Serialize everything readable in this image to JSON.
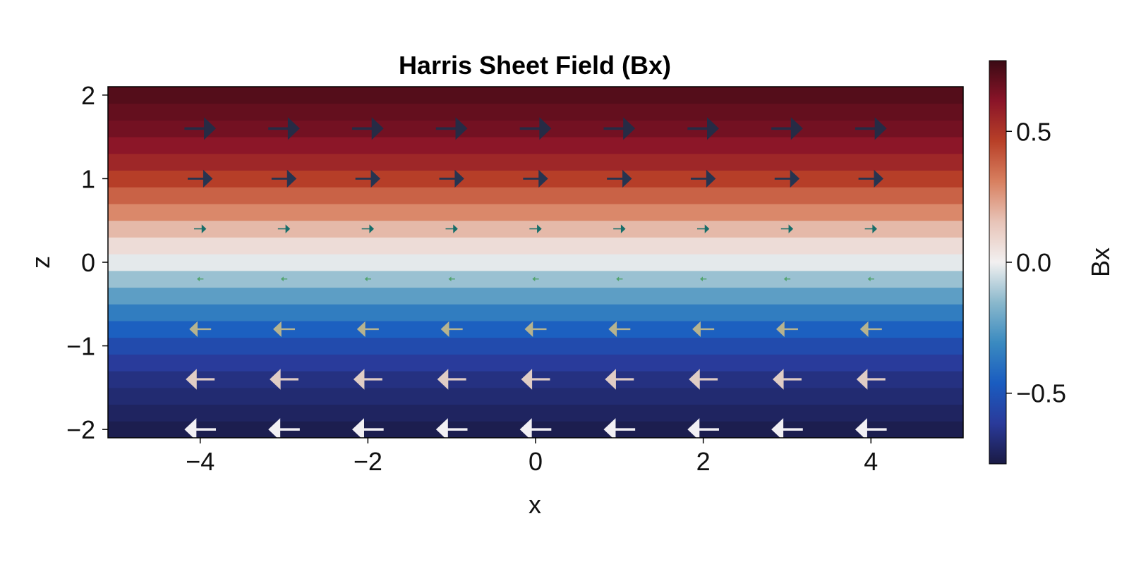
{
  "chart_data": {
    "type": "heatmap",
    "title": "Harris Sheet Field (Bx)",
    "xlabel": "x",
    "ylabel": "z",
    "xlim": [
      -5.1,
      5.1
    ],
    "ylim": [
      -2.1,
      2.1
    ],
    "xticks": [
      -4,
      -2,
      0,
      2,
      4
    ],
    "xtick_labels": [
      "−4",
      "−2",
      "0",
      "2",
      "4"
    ],
    "yticks": [
      -2,
      -1,
      0,
      1,
      2
    ],
    "ytick_labels": [
      "−2",
      "−1",
      "0",
      "1",
      "2"
    ],
    "field": {
      "z_bands": [
        -2.1,
        -1.9,
        -1.7,
        -1.5,
        -1.3,
        -1.1,
        -0.9,
        -0.7,
        -0.5,
        -0.3,
        -0.1,
        0.1,
        0.3,
        0.5,
        0.7,
        0.9,
        1.1,
        1.3,
        1.5,
        1.7,
        1.9,
        2.1
      ],
      "band_values": [
        -0.75,
        -0.72,
        -0.69,
        -0.66,
        -0.61,
        -0.54,
        -0.45,
        -0.35,
        -0.24,
        -0.13,
        -0.02,
        0.07,
        0.18,
        0.29,
        0.38,
        0.47,
        0.55,
        0.61,
        0.66,
        0.69,
        0.72,
        0.75
      ]
    },
    "arrows": {
      "x": [
        -4,
        -3,
        -2,
        -1,
        0,
        1,
        2,
        3,
        4
      ],
      "rows": [
        {
          "z": 1.6,
          "bx": 0.72,
          "color": "#262b45"
        },
        {
          "z": 1.0,
          "bx": 0.57,
          "color": "#263450"
        },
        {
          "z": 0.4,
          "bx": 0.28,
          "color": "#176e6a"
        },
        {
          "z": -0.2,
          "bx": -0.15,
          "color": "#52a36e"
        },
        {
          "z": -0.8,
          "bx": -0.5,
          "color": "#b6b38f"
        },
        {
          "z": -1.4,
          "bx": -0.66,
          "color": "#e0cdc5"
        },
        {
          "z": -2.0,
          "bx": -0.72,
          "color": "#f2f0f4"
        }
      ]
    },
    "colorbar": {
      "label": "Bx",
      "limits": [
        -0.77,
        0.77
      ],
      "ticks": [
        -0.5,
        0.0,
        0.5
      ],
      "tick_labels": [
        "−0.5",
        "0.0",
        "0.5"
      ],
      "colormap": [
        "#1a1a44",
        "#2a3a9a",
        "#1a5cc0",
        "#3a8ac0",
        "#8ab8cc",
        "#f2f0f0",
        "#e8c4b8",
        "#d88060",
        "#b84028",
        "#8a1428",
        "#3a0a14"
      ]
    }
  }
}
